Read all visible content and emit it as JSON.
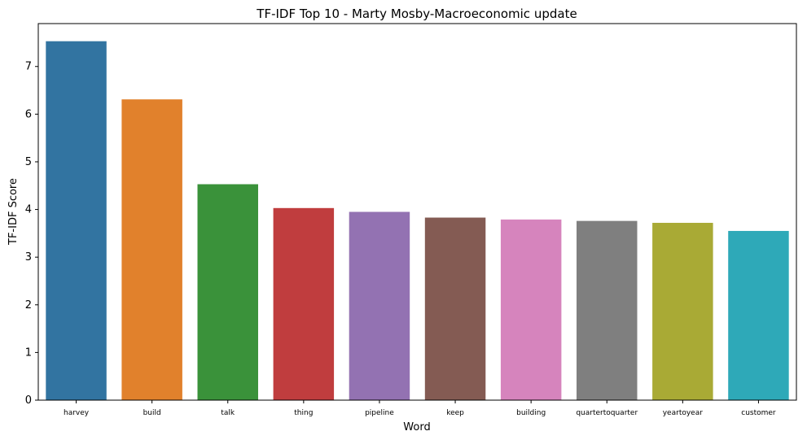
{
  "chart_data": {
    "type": "bar",
    "title": "TF-IDF Top 10 - Marty Mosby-Macroeconomic update",
    "xlabel": "Word",
    "ylabel": "TF-IDF Score",
    "categories": [
      "harvey",
      "build",
      "talk",
      "thing",
      "pipeline",
      "keep",
      "building",
      "quartertoquarter",
      "yeartoyear",
      "customer"
    ],
    "values": [
      7.53,
      6.31,
      4.53,
      4.03,
      3.95,
      3.83,
      3.79,
      3.76,
      3.72,
      3.55
    ],
    "colors": [
      "#3274a1",
      "#e1812c",
      "#3a923a",
      "#c03d3e",
      "#9372b2",
      "#845b53",
      "#d684bd",
      "#7f7f7f",
      "#a9aa35",
      "#2ea9b8"
    ],
    "ylim": [
      0,
      7.9
    ],
    "yticks": [
      0,
      1,
      2,
      3,
      4,
      5,
      6,
      7
    ],
    "grid": false,
    "legend": "none"
  }
}
